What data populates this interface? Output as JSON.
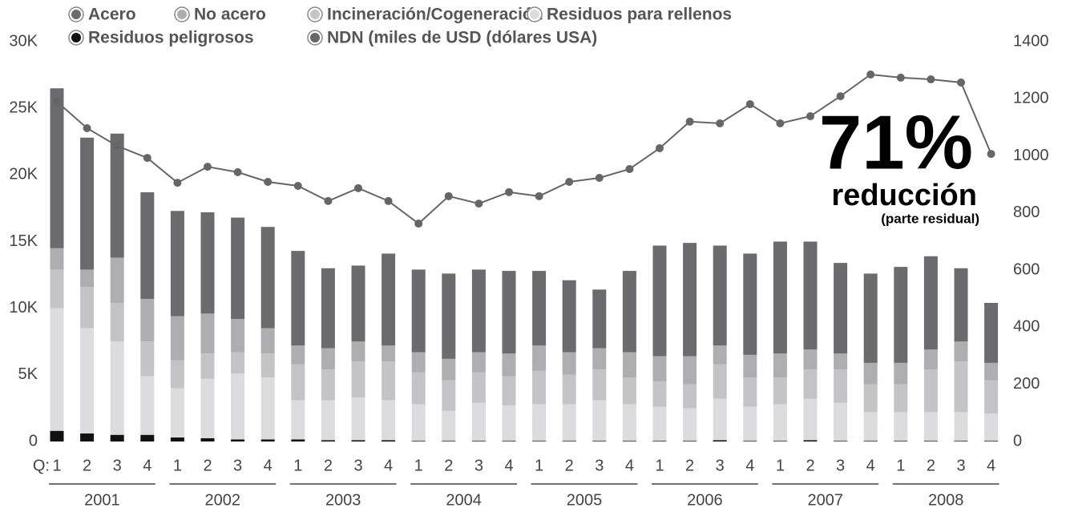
{
  "chart_data": {
    "type": "bar",
    "stacked": true,
    "axis_prefix": "Q:",
    "categories": [
      "1",
      "2",
      "3",
      "4",
      "1",
      "2",
      "3",
      "4",
      "1",
      "2",
      "3",
      "4",
      "1",
      "2",
      "3",
      "4",
      "1",
      "2",
      "3",
      "4",
      "1",
      "2",
      "3",
      "4",
      "1",
      "2",
      "3",
      "4",
      "1",
      "2",
      "3",
      "4"
    ],
    "years": [
      "2001",
      "2002",
      "2003",
      "2004",
      "2005",
      "2006",
      "2007",
      "2008"
    ],
    "series": [
      {
        "name": "Acero",
        "color": "#6b6b6d",
        "values": [
          12000,
          9900,
          9300,
          8000,
          7900,
          7600,
          7600,
          7600,
          7100,
          6000,
          5700,
          6900,
          6200,
          6400,
          6200,
          6200,
          5600,
          5400,
          4400,
          6100,
          8300,
          8500,
          7500,
          7600,
          8400,
          8100,
          6800,
          6700,
          7200,
          7000,
          5500,
          4500
        ]
      },
      {
        "name": "No acero",
        "color": "#aeaeb0",
        "values": [
          1600,
          1300,
          3400,
          3200,
          3300,
          3000,
          2500,
          1900,
          1400,
          1600,
          1500,
          1200,
          1500,
          1600,
          1500,
          1700,
          1900,
          1700,
          1600,
          1900,
          1900,
          2100,
          1400,
          1700,
          1800,
          1500,
          1200,
          1600,
          1600,
          1500,
          1500,
          1300
        ]
      },
      {
        "name": "Incineración/Cogeneración",
        "color": "#c4c4c6",
        "values": [
          2900,
          3100,
          2900,
          2600,
          2100,
          1900,
          1600,
          1800,
          2700,
          2300,
          2700,
          2900,
          2400,
          2300,
          2300,
          2200,
          2500,
          2200,
          2300,
          2000,
          1900,
          1800,
          2600,
          2200,
          2000,
          2200,
          2500,
          2100,
          2100,
          3200,
          3800,
          2500
        ]
      },
      {
        "name": "Residuos para rellenos",
        "color": "#dcdcde",
        "values": [
          9200,
          7900,
          7000,
          4400,
          3700,
          4450,
          4950,
          4650,
          2950,
          3000,
          3200,
          3000,
          2750,
          2250,
          2850,
          2650,
          2750,
          2750,
          3050,
          2750,
          2550,
          2450,
          3100,
          2550,
          2750,
          3100,
          2850,
          2150,
          2150,
          2150,
          2150,
          2050
        ]
      },
      {
        "name": "Residuos peligrosos",
        "color": "#111111",
        "values": [
          800,
          600,
          500,
          500,
          300,
          250,
          150,
          150,
          150,
          100,
          100,
          100,
          50,
          50,
          50,
          50,
          50,
          50,
          50,
          50,
          50,
          50,
          100,
          50,
          50,
          100,
          50,
          50,
          50,
          50,
          50,
          50
        ]
      },
      {
        "name": "NDN (miles de USD (dólares USA)",
        "color": "#666668",
        "type": "line",
        "axis": "y2",
        "values": [
          1190,
          1097,
          1035,
          993,
          906,
          962,
          943,
          909,
          895,
          842,
          887,
          842,
          763,
          859,
          833,
          873,
          859,
          909,
          923,
          954,
          1027,
          1120,
          1114,
          1181,
          1114,
          1139,
          1209,
          1285,
          1274,
          1268,
          1257,
          1007
        ]
      }
    ],
    "ylim": [
      0,
      30000
    ],
    "yticks": [
      0,
      {
        "value": 5000,
        "label": "5K"
      },
      {
        "value": 10000,
        "label": "10K"
      },
      {
        "value": 15000,
        "label": "15K"
      },
      {
        "value": 20000,
        "label": "20K"
      },
      {
        "value": 25000,
        "label": "25K"
      },
      {
        "value": 30000,
        "label": "30K"
      }
    ],
    "y2lim": [
      0,
      1400
    ],
    "y2ticks": [
      0,
      200,
      400,
      600,
      800,
      1000,
      1200,
      1400
    ],
    "annotation": {
      "big": "71%",
      "text": "reducción",
      "note": "(parte residual)"
    }
  }
}
